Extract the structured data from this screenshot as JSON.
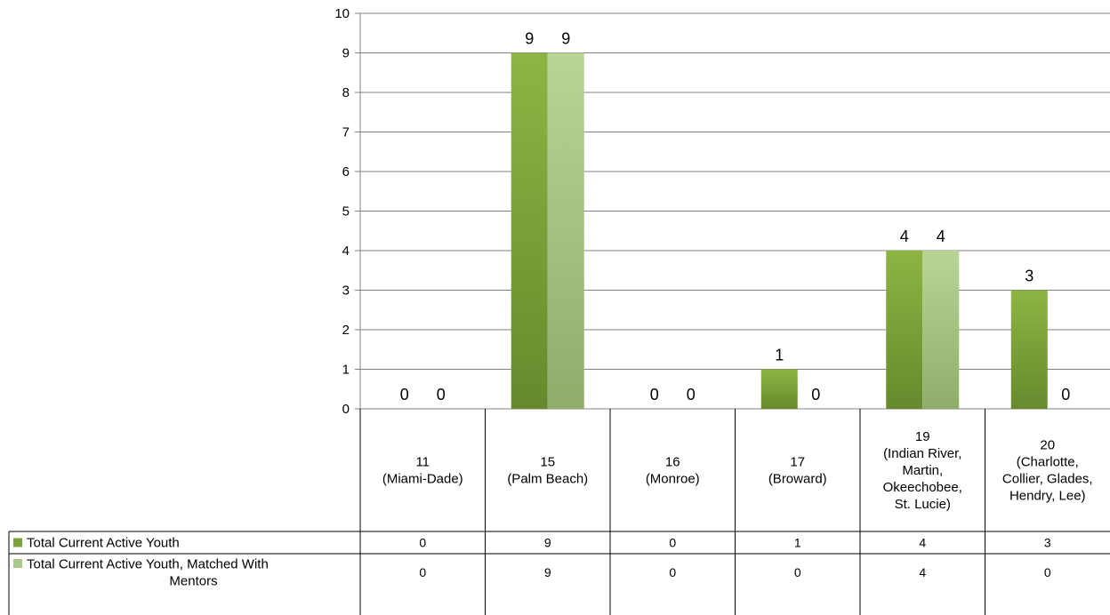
{
  "chart_data": {
    "type": "bar",
    "ylim": [
      0,
      10
    ],
    "yticks": [
      "0",
      "1",
      "2",
      "3",
      "4",
      "5",
      "6",
      "7",
      "8",
      "9",
      "10"
    ],
    "categories": [
      "11 (Miami-Dade)",
      "15 (Palm Beach)",
      "16 (Monroe)",
      "17 (Broward)",
      "19 (Indian River, Martin, Okeechobee, St. Lucie)",
      "20 (Charlotte, Collier, Glades, Hendry, Lee)"
    ],
    "category_lines": [
      [
        "11",
        "(Miami-Dade)"
      ],
      [
        "15",
        "(Palm Beach)"
      ],
      [
        "16",
        "(Monroe)"
      ],
      [
        "17",
        "(Broward)"
      ],
      [
        "19",
        "(Indian River,",
        "Martin,",
        "Okeechobee,",
        "St. Lucie)"
      ],
      [
        "20",
        "(Charlotte,",
        "Collier, Glades,",
        "Hendry, Lee)"
      ]
    ],
    "series": [
      {
        "name": "Total Current Active Youth",
        "name_lines": [
          "Total Current Active Youth"
        ],
        "values": [
          0,
          9,
          0,
          1,
          4,
          3
        ],
        "color": "#7aa33a"
      },
      {
        "name": "Total Current Active Youth, Matched With Mentors",
        "name_lines": [
          "Total Current Active Youth, Matched With",
          "Mentors"
        ],
        "values": [
          0,
          9,
          0,
          0,
          4,
          0
        ],
        "color": "#a9c88a"
      }
    ],
    "grid": true,
    "legend": "data-table-left",
    "data_table": true
  }
}
